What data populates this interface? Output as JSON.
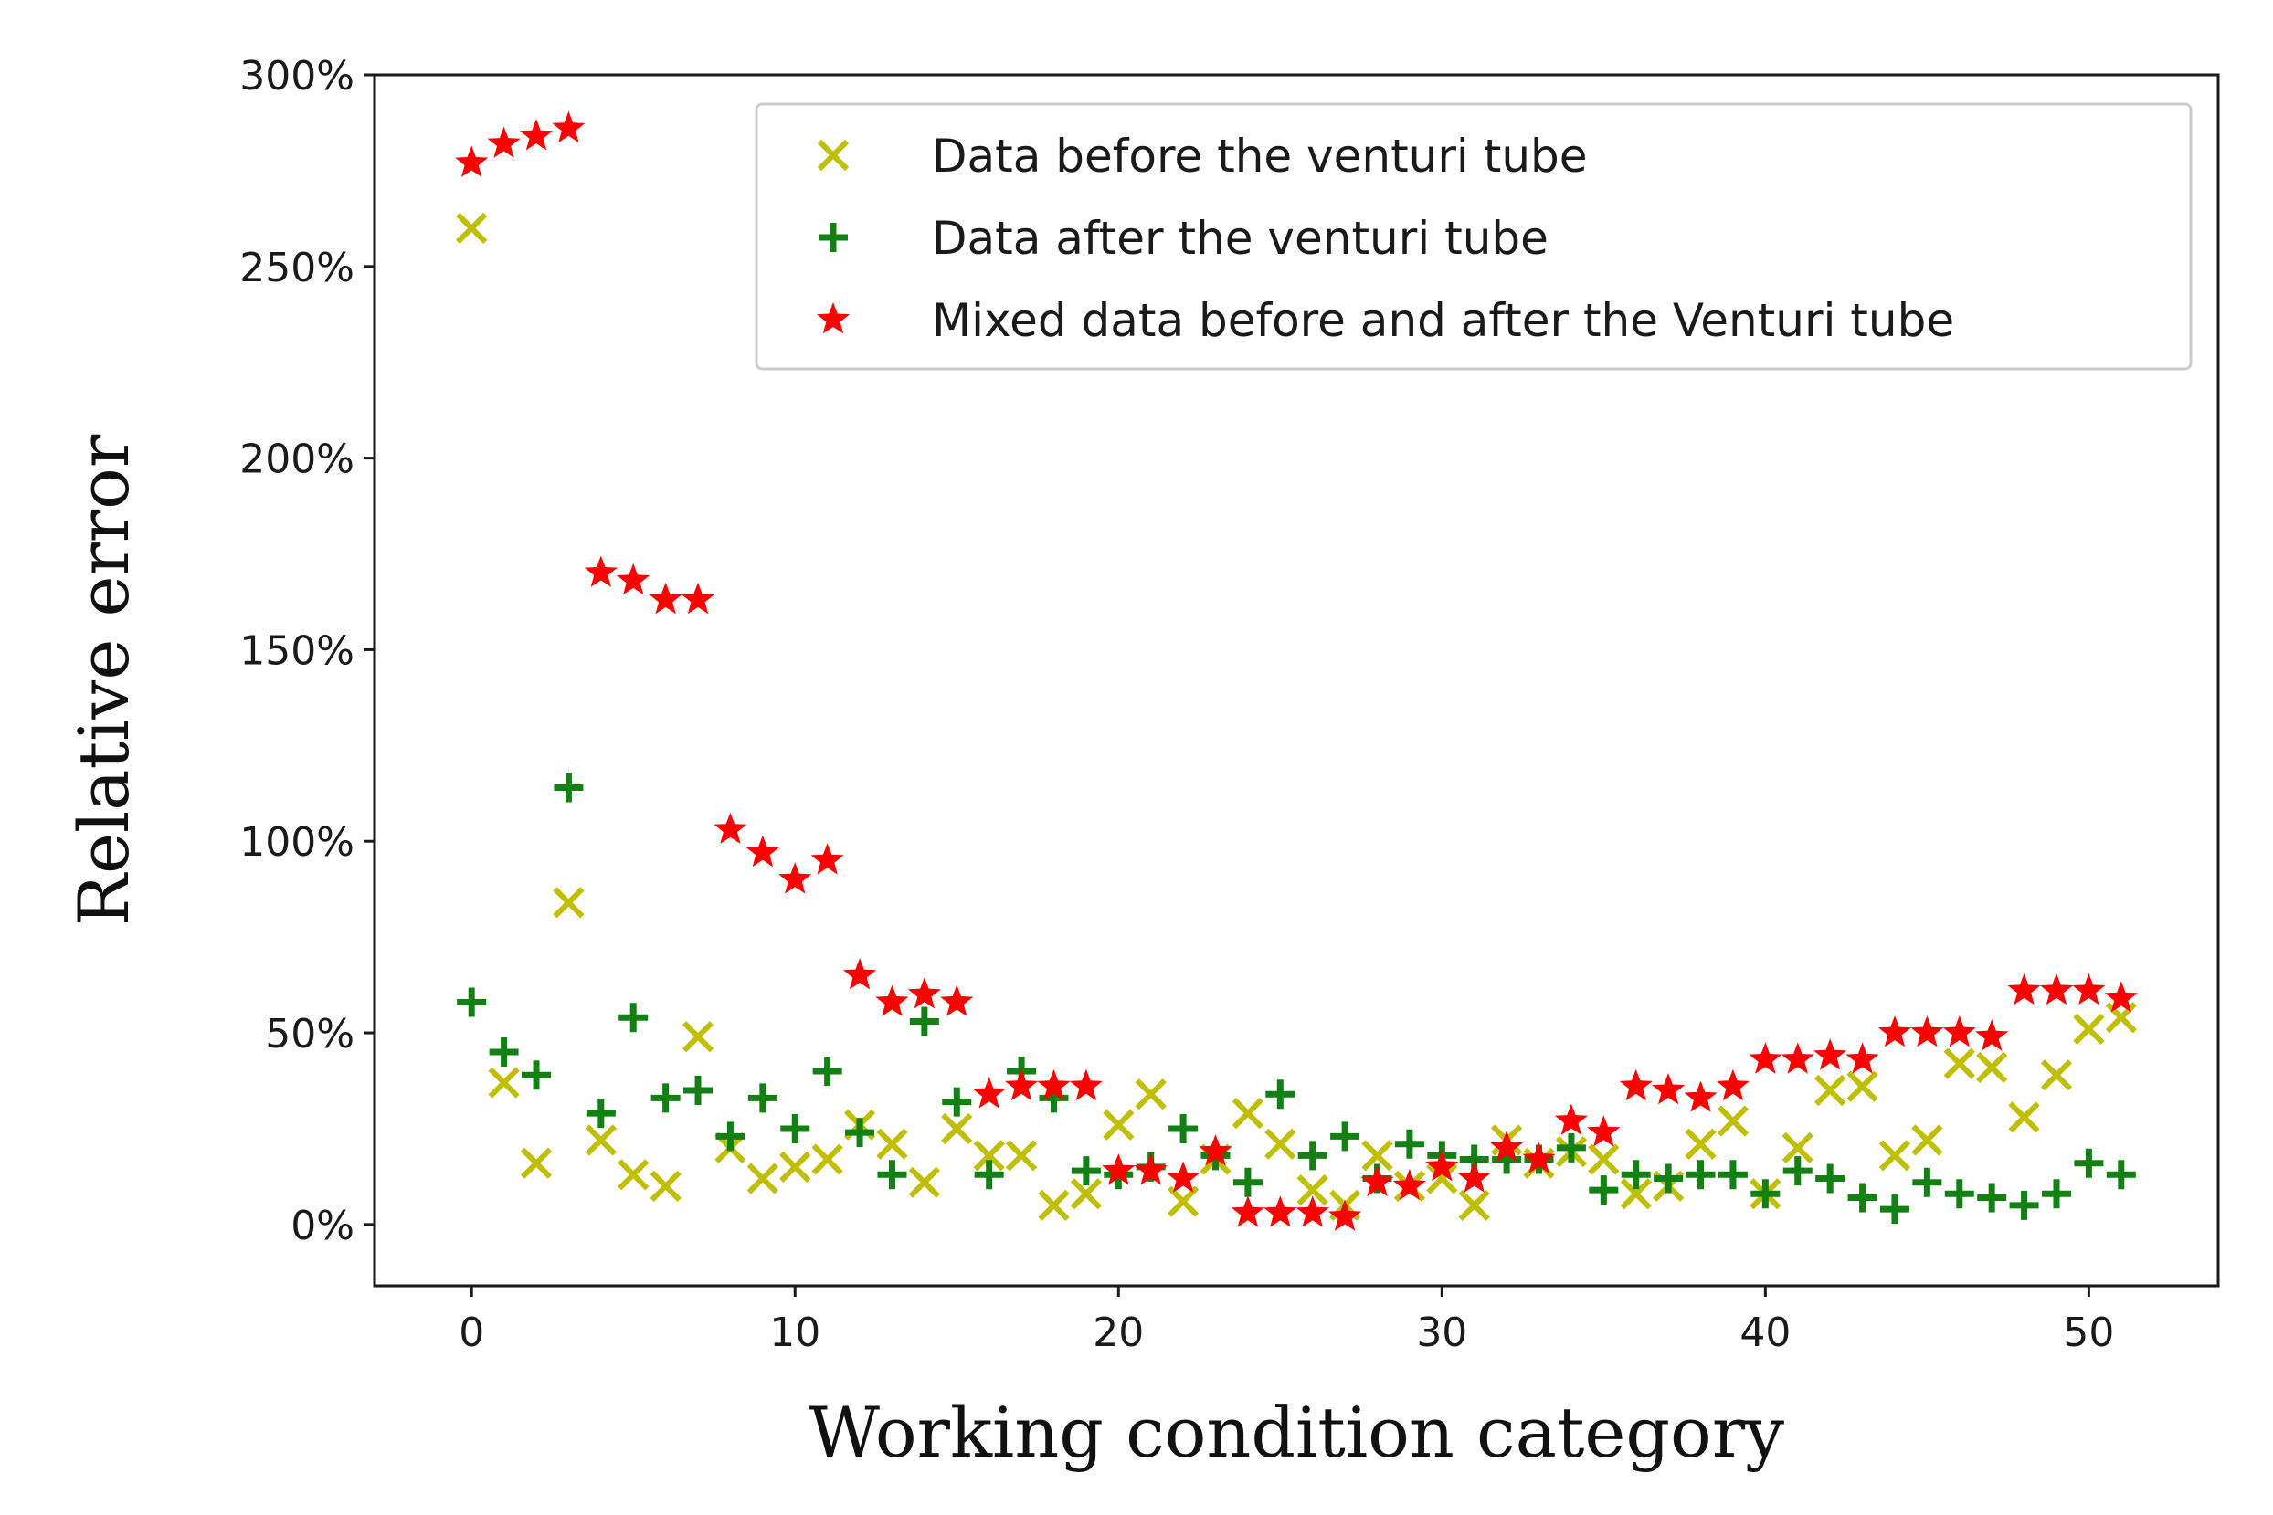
{
  "chart_data": {
    "type": "scatter",
    "title": "",
    "xlabel": "Working condition category",
    "ylabel": "Relative error",
    "xlim": [
      -3,
      54
    ],
    "ylim": [
      -16,
      300
    ],
    "grid": false,
    "legend_position": "top-right",
    "x_ticks": [
      0,
      10,
      20,
      30,
      40,
      50
    ],
    "x_tick_labels": [
      "0",
      "10",
      "20",
      "30",
      "40",
      "50"
    ],
    "y_ticks": [
      0,
      50,
      100,
      150,
      200,
      250,
      300
    ],
    "y_tick_labels": [
      "0%",
      "50%",
      "100%",
      "150%",
      "200%",
      "250%",
      "300%"
    ],
    "series": [
      {
        "name": "Data before the venturi tube",
        "marker": "x",
        "color": "#bfbf00",
        "x": [
          0,
          1,
          2,
          3,
          4,
          5,
          6,
          7,
          8,
          9,
          10,
          11,
          12,
          13,
          14,
          15,
          16,
          17,
          18,
          19,
          20,
          21,
          22,
          23,
          24,
          25,
          26,
          27,
          28,
          29,
          30,
          31,
          32,
          33,
          34,
          35,
          36,
          37,
          38,
          39,
          40,
          41,
          42,
          43,
          44,
          45,
          46,
          47,
          48,
          49,
          50,
          51
        ],
        "y": [
          260,
          37,
          16,
          84,
          22,
          13,
          10,
          49,
          20,
          12,
          15,
          17,
          26,
          21,
          11,
          25,
          18,
          18,
          5,
          8,
          26,
          34,
          6,
          17,
          29,
          21,
          9,
          5,
          18,
          10,
          12,
          5,
          22,
          16,
          19,
          17,
          8,
          10,
          21,
          27,
          8,
          20,
          35,
          36,
          18,
          22,
          42,
          41,
          28,
          39,
          51,
          54
        ]
      },
      {
        "name": "Data after the venturi tube",
        "marker": "+",
        "color": "#128012",
        "x": [
          0,
          1,
          2,
          3,
          4,
          5,
          6,
          7,
          8,
          9,
          10,
          11,
          12,
          13,
          14,
          15,
          16,
          17,
          18,
          19,
          20,
          21,
          22,
          23,
          24,
          25,
          26,
          27,
          28,
          29,
          30,
          31,
          32,
          33,
          34,
          35,
          36,
          37,
          38,
          39,
          40,
          41,
          42,
          43,
          44,
          45,
          46,
          47,
          48,
          49,
          50,
          51
        ],
        "y": [
          58,
          45,
          39,
          114,
          29,
          54,
          33,
          35,
          23,
          33,
          25,
          40,
          24,
          13,
          53,
          32,
          13,
          40,
          33,
          14,
          13,
          15,
          25,
          18,
          11,
          34,
          18,
          23,
          12,
          21,
          18,
          17,
          17,
          17,
          20,
          9,
          13,
          12,
          13,
          13,
          8,
          14,
          12,
          7,
          4,
          11,
          8,
          7,
          5,
          8,
          16,
          13
        ]
      },
      {
        "name": "Mixed data before and after the Venturi tube",
        "marker": "*",
        "color": "#ff0000",
        "x": [
          0,
          1,
          2,
          3,
          4,
          5,
          6,
          7,
          8,
          9,
          10,
          11,
          12,
          13,
          14,
          15,
          16,
          17,
          18,
          19,
          20,
          21,
          22,
          23,
          24,
          25,
          26,
          27,
          28,
          29,
          30,
          31,
          32,
          33,
          34,
          35,
          36,
          37,
          38,
          39,
          40,
          41,
          42,
          43,
          44,
          45,
          46,
          47,
          48,
          49,
          50,
          51
        ],
        "y": [
          277,
          282,
          284,
          286,
          170,
          168,
          163,
          163,
          103,
          97,
          90,
          95,
          65,
          58,
          60,
          58,
          34,
          36,
          36,
          36,
          14,
          14,
          12,
          19,
          3,
          3,
          3,
          2,
          11,
          10,
          15,
          12,
          20,
          17,
          27,
          24,
          36,
          35,
          33,
          36,
          43,
          43,
          44,
          43,
          50,
          50,
          50,
          49,
          61,
          61,
          61,
          59
        ]
      }
    ]
  }
}
